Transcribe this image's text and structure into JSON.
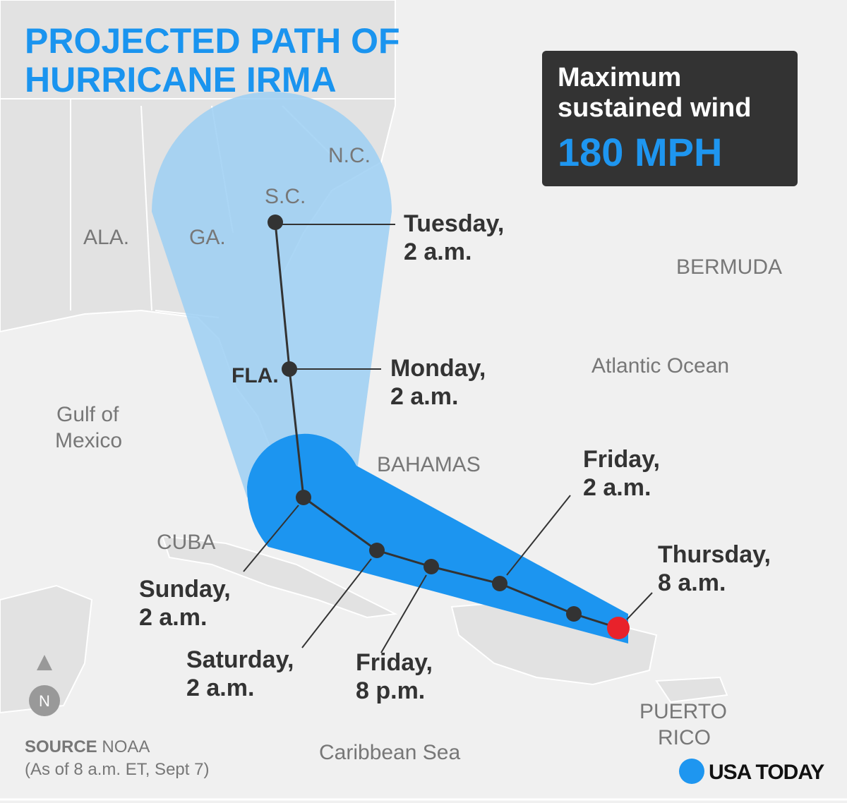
{
  "title_lines": [
    "PROJECTED PATH OF",
    "HURRICANE IRMA"
  ],
  "wind_box": {
    "label_lines": [
      "Maximum",
      "sustained wind"
    ],
    "value": "180 MPH"
  },
  "place_labels": {
    "nc": "N.C.",
    "sc": "S.C.",
    "ala": "ALA.",
    "ga": "GA.",
    "fla": "FLA.",
    "bermuda": "BERMUDA",
    "atlantic": "Atlantic Ocean",
    "gulf": [
      "Gulf of",
      "Mexico"
    ],
    "bahamas": "BAHAMAS",
    "cuba": "CUBA",
    "puerto_rico": [
      "PUERTO",
      "RICO"
    ],
    "caribbean": "Caribbean Sea"
  },
  "track_points": [
    {
      "label_lines": [
        "Thursday,",
        "8 a.m."
      ]
    },
    {
      "label_lines": [
        "Friday,",
        "2 a.m."
      ]
    },
    {
      "label_lines": [
        "Friday,",
        "8 p.m."
      ]
    },
    {
      "label_lines": [
        "Saturday,",
        "2 a.m."
      ]
    },
    {
      "label_lines": [
        "Sunday,",
        "2 a.m."
      ]
    },
    {
      "label_lines": [
        "Monday,",
        "2 a.m."
      ]
    },
    {
      "label_lines": [
        "Tuesday,",
        "2 a.m."
      ]
    }
  ],
  "north": "N",
  "source": {
    "label": "SOURCE",
    "text": "NOAA",
    "note": "(As of 8 a.m. ET, Sept 7)"
  },
  "logo": "USA TODAY"
}
